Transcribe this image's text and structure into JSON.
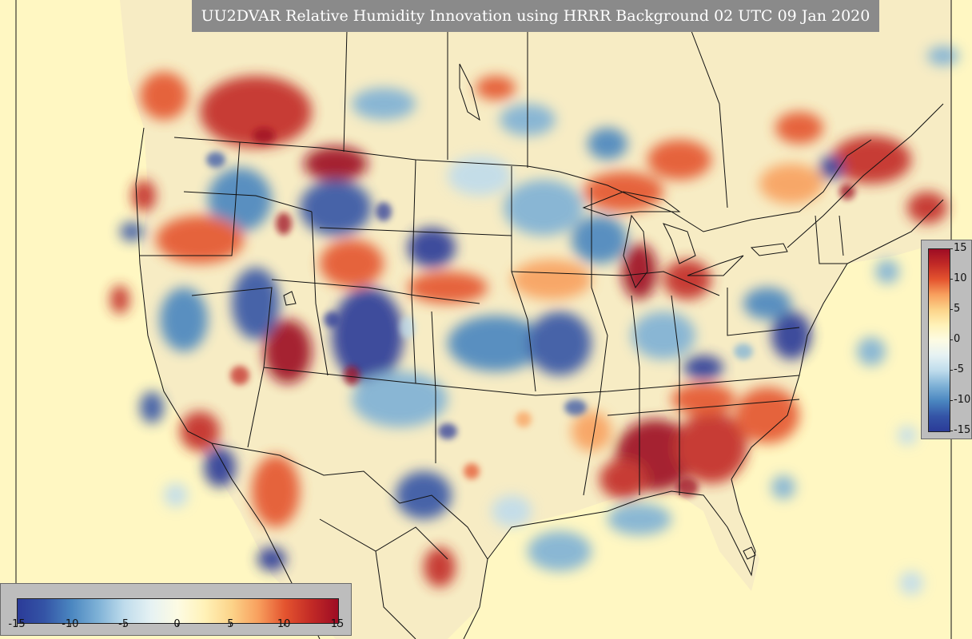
{
  "title": "UU2DVAR Relative Humidity Innovation using HRRR Background 02 UTC 09 Jan 2020",
  "colorbar_bottom": {
    "min": -15,
    "max": 15,
    "tick_labels": [
      "-15",
      "-10",
      "-5",
      "0",
      "5",
      "10",
      "15"
    ],
    "tick_values": [
      -15,
      -10,
      -5,
      0,
      5,
      10,
      15
    ]
  },
  "colorbar_right": {
    "min": -15,
    "max": 15,
    "tick_labels": [
      "15",
      "10",
      "5",
      "0",
      "-5",
      "-10",
      "-15"
    ],
    "tick_values": [
      15,
      10,
      5,
      0,
      -5,
      -10,
      -15
    ]
  },
  "colors": {
    "ocean_neutral": "#fff7c2",
    "negative_strong": "#2b3b98",
    "negative_mid": "#4a86c0",
    "negative_weak": "#bfdcec",
    "neutral": "#fdfbe3",
    "positive_weak": "#fcd48a",
    "positive_mid": "#e4542f",
    "positive_strong": "#9d0c24",
    "boundary_lines": "#111111",
    "panel_gray": "#bdbdbd",
    "title_box": "#8a8a8a"
  },
  "colormap": [
    "#2b3b98",
    "#3454a6",
    "#4a86c0",
    "#7eb1d6",
    "#bfdcec",
    "#e6f2f3",
    "#fdfbe3",
    "#fff2b8",
    "#fcd48a",
    "#f8a05e",
    "#e4542f",
    "#c22a26",
    "#9d0c24"
  ]
}
